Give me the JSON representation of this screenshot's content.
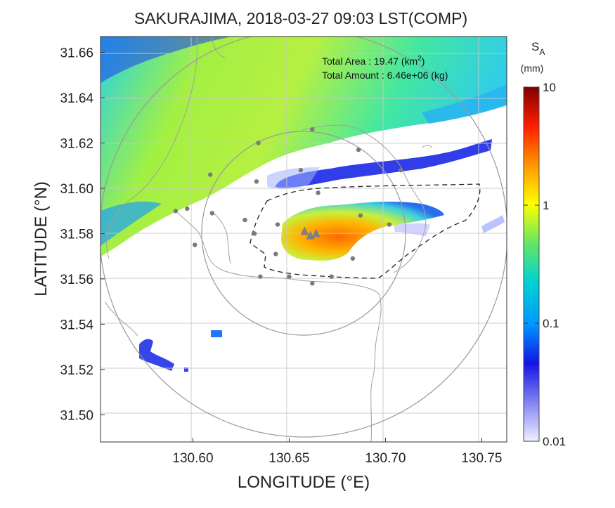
{
  "title": "SAKURAJIMA, 2018-03-27 09:03 LST(COMP)",
  "axes": {
    "xlabel": "LONGITUDE (°E)",
    "ylabel": "LATITUDE (°N)",
    "xlim": [
      130.552,
      130.763
    ],
    "ylim": [
      31.488,
      31.667
    ],
    "xticks": [
      "130.60",
      "130.65",
      "130.70",
      "130.75"
    ],
    "xtick_values": [
      130.6,
      130.65,
      130.7,
      130.75
    ],
    "yticks": [
      "31.66",
      "31.64",
      "31.62",
      "31.60",
      "31.58",
      "31.56",
      "31.54",
      "31.52",
      "31.50"
    ],
    "ytick_values": [
      31.66,
      31.64,
      31.62,
      31.6,
      31.58,
      31.56,
      31.54,
      31.52,
      31.5
    ],
    "grid": true
  },
  "annotation": {
    "area_label": "Total Area   : 19.47 (km",
    "area_sup": "2",
    "area_close": ")",
    "amount_label": "Total Amount : 6.46e+06 (kg)"
  },
  "colorbar": {
    "symbol": "S",
    "symbol_sub": "A",
    "unit": "(mm)",
    "ticks": [
      "10",
      "1",
      "0.1",
      "0.01"
    ],
    "tick_values": [
      10,
      1,
      0.1,
      0.01
    ],
    "scale": "log",
    "colors": [
      "#e8e8ff",
      "#8a8af5",
      "#1a1ae6",
      "#0a2aff",
      "#0096ff",
      "#00dcdc",
      "#3ce678",
      "#aaf03c",
      "#ffff00",
      "#ffc800",
      "#ff7800",
      "#ff1e00",
      "#c80000",
      "#8a0000"
    ]
  },
  "map": {
    "vent_markers": [
      [
        130.658,
        31.581
      ],
      [
        130.661,
        31.579
      ],
      [
        130.664,
        31.58
      ]
    ],
    "station_points": [
      [
        130.662,
        31.626
      ],
      [
        130.634,
        31.62
      ],
      [
        130.686,
        31.617
      ],
      [
        130.609,
        31.606
      ],
      [
        130.656,
        31.608
      ],
      [
        130.708,
        31.608
      ],
      [
        130.633,
        31.603
      ],
      [
        130.597,
        31.591
      ],
      [
        130.61,
        31.589
      ],
      [
        130.591,
        31.59
      ],
      [
        130.627,
        31.586
      ],
      [
        130.644,
        31.584
      ],
      [
        130.665,
        31.598
      ],
      [
        130.687,
        31.588
      ],
      [
        130.702,
        31.584
      ],
      [
        130.601,
        31.575
      ],
      [
        130.632,
        31.58
      ],
      [
        130.643,
        31.571
      ],
      [
        130.683,
        31.569
      ],
      [
        130.65,
        31.561
      ],
      [
        130.635,
        31.561
      ],
      [
        130.662,
        31.558
      ],
      [
        130.672,
        31.561
      ]
    ]
  },
  "chart_data": {
    "type": "heatmap",
    "title": "SAKURAJIMA, 2018-03-27 09:03 LST(COMP)",
    "xlabel": "LONGITUDE (°E)",
    "ylabel": "LATITUDE (°N)",
    "xlim": [
      130.552,
      130.763
    ],
    "ylim": [
      31.488,
      31.667
    ],
    "colorbar_label": "S_A (mm)",
    "colorbar_range": [
      0.01,
      10
    ],
    "total_area_km2": 19.47,
    "total_amount_kg": 6460000.0
  }
}
